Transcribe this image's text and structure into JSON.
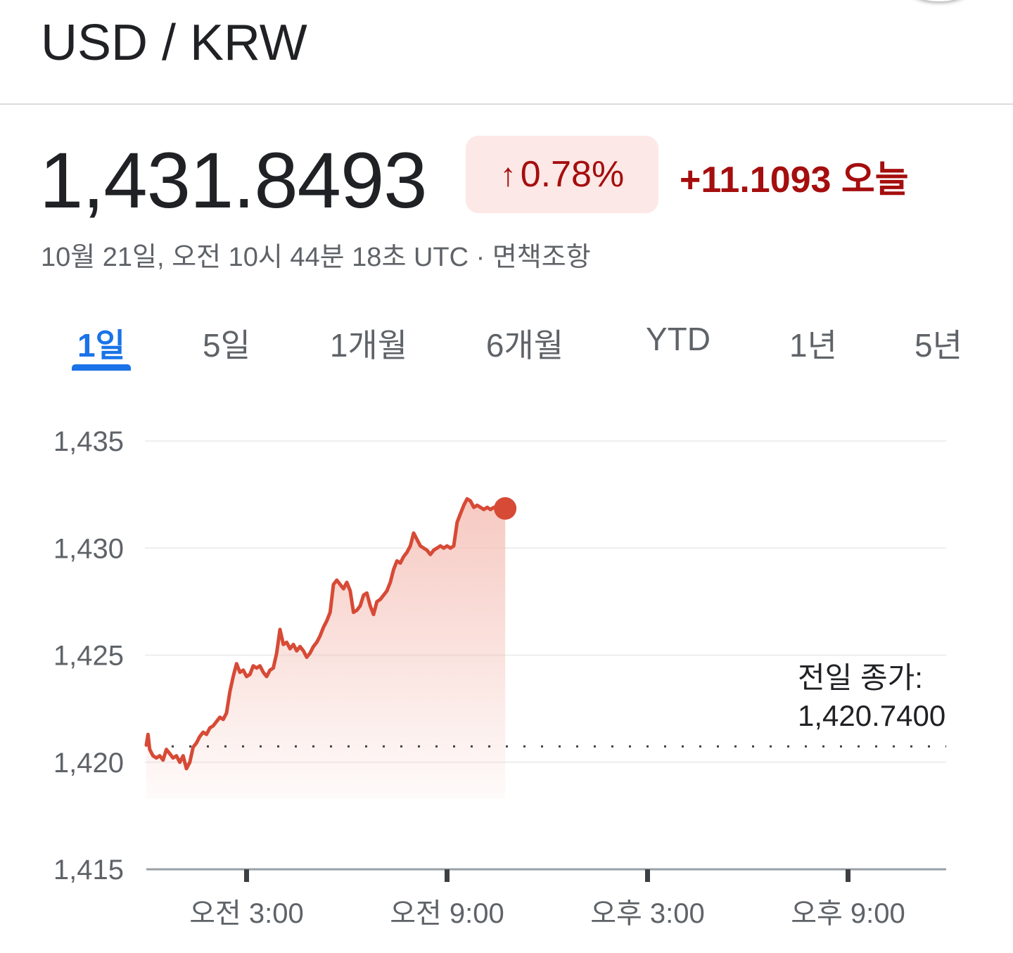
{
  "header": {
    "title": "USD / KRW"
  },
  "quote": {
    "price": "1,431.8493",
    "change_percent": "0.78%",
    "change_arrow": "↑",
    "change_abs": "+11.1093 오늘",
    "timestamp": "10월 21일, 오전 10시 44분 18초 UTC · 면책조항"
  },
  "tabs": [
    {
      "label": "1일",
      "active": true
    },
    {
      "label": "5일",
      "active": false
    },
    {
      "label": "1개월",
      "active": false
    },
    {
      "label": "6개월",
      "active": false
    },
    {
      "label": "YTD",
      "active": false
    },
    {
      "label": "1년",
      "active": false
    },
    {
      "label": "5년",
      "active": false
    }
  ],
  "colors": {
    "line": "#d74a36",
    "fill_top": "#f3b7ad",
    "active_tab": "#1a73e8",
    "negative_text": "#a50e0e",
    "badge_bg": "#fce8e6"
  },
  "chart_data": {
    "type": "area",
    "y_ticks": [
      "1,435",
      "1,430",
      "1,425",
      "1,420",
      "1,415"
    ],
    "y_tick_values": [
      1435,
      1430,
      1425,
      1420,
      1415
    ],
    "ylim": [
      1415,
      1435
    ],
    "x_ticks": [
      "오전 3:00",
      "오전 9:00",
      "오후 3:00",
      "오후 9:00"
    ],
    "x_tick_hours": [
      3,
      9,
      15,
      21
    ],
    "xlim_hours": [
      0.0,
      24.0
    ],
    "grid": true,
    "previous_close": {
      "label_line1": "전일 종가:",
      "label_line2": "1,420.7400",
      "value": 1420.74
    },
    "series": [
      {
        "values_hours": [
          0.0,
          0.05,
          0.1,
          0.2,
          0.3,
          0.4,
          0.5,
          0.6,
          0.7,
          0.8,
          0.9,
          1.0,
          1.1,
          1.2,
          1.3,
          1.4,
          1.5,
          1.6,
          1.7,
          1.8,
          1.9,
          2.0,
          2.1,
          2.2,
          2.3,
          2.4,
          2.5,
          2.6,
          2.7,
          2.8,
          2.9,
          3.0,
          3.1,
          3.2,
          3.3,
          3.4,
          3.5,
          3.6,
          3.7,
          3.8,
          3.9,
          4.0,
          4.1,
          4.2,
          4.3,
          4.4,
          4.5,
          4.6,
          4.7,
          4.8,
          4.9,
          5.0,
          5.1,
          5.2,
          5.3,
          5.4,
          5.5,
          5.6,
          5.7,
          5.8,
          5.9,
          6.0,
          6.1,
          6.2,
          6.3,
          6.4,
          6.5,
          6.6,
          6.7,
          6.8,
          6.9,
          7.0,
          7.1,
          7.2,
          7.3,
          7.4,
          7.5,
          7.6,
          7.7,
          7.8,
          7.9,
          8.0,
          8.1,
          8.2,
          8.3,
          8.4,
          8.5,
          8.6,
          8.7,
          8.8,
          8.9,
          9.0,
          9.1,
          9.2,
          9.3,
          9.4,
          9.5,
          9.6,
          9.7,
          9.8,
          9.9,
          10.0,
          10.1,
          10.2,
          10.3,
          10.4,
          10.5,
          10.6,
          10.74
        ],
        "values": [
          1420.8,
          1421.3,
          1420.6,
          1420.3,
          1420.2,
          1420.3,
          1420.1,
          1420.6,
          1420.4,
          1420.2,
          1420.3,
          1420.0,
          1420.3,
          1419.7,
          1420.0,
          1420.7,
          1420.9,
          1421.2,
          1421.4,
          1421.3,
          1421.6,
          1421.7,
          1421.9,
          1422.1,
          1422.0,
          1422.3,
          1423.3,
          1424.0,
          1424.6,
          1424.2,
          1424.3,
          1424.0,
          1424.1,
          1424.5,
          1424.4,
          1424.5,
          1424.2,
          1424.0,
          1424.3,
          1424.4,
          1425.1,
          1426.2,
          1425.5,
          1425.6,
          1425.3,
          1425.5,
          1425.2,
          1425.4,
          1425.2,
          1424.9,
          1425.1,
          1425.4,
          1425.6,
          1425.9,
          1426.3,
          1426.6,
          1427.0,
          1428.3,
          1428.5,
          1428.3,
          1428.1,
          1428.4,
          1428.0,
          1427.0,
          1427.1,
          1427.3,
          1427.8,
          1427.9,
          1427.3,
          1426.9,
          1427.5,
          1427.6,
          1427.8,
          1428.0,
          1428.4,
          1429.0,
          1429.4,
          1429.3,
          1429.6,
          1429.8,
          1430.1,
          1430.7,
          1430.4,
          1430.1,
          1430.0,
          1429.9,
          1429.7,
          1429.9,
          1430.0,
          1430.1,
          1430.0,
          1430.1,
          1430.0,
          1430.1,
          1431.2,
          1431.6,
          1432.0,
          1432.3,
          1432.2,
          1431.9,
          1432.0,
          1431.9,
          1431.8,
          1431.9,
          1431.8,
          1431.9,
          1431.85,
          1431.9,
          1431.85
        ]
      }
    ]
  }
}
